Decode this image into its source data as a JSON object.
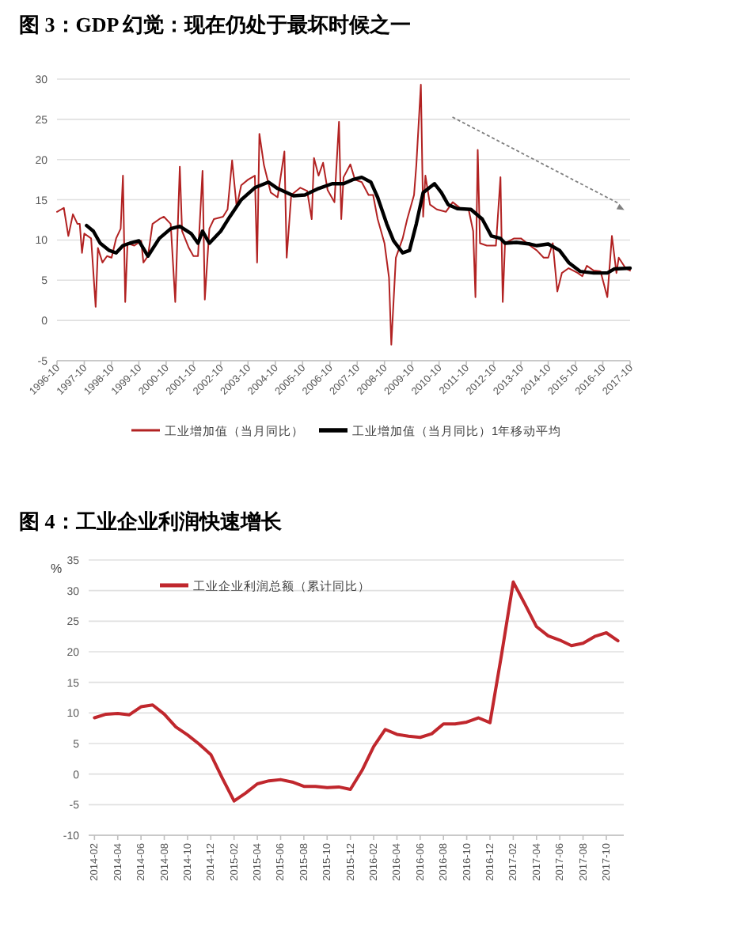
{
  "chart_data": [
    {
      "type": "line",
      "title": "图 3：GDP 幻觉：现在仍处于最坏时候之一",
      "xlim": [
        "1996-10",
        "2017-10"
      ],
      "xticks": [
        "1996-10",
        "1997-10",
        "1998-10",
        "1999-10",
        "2000-10",
        "2001-10",
        "2002-10",
        "2003-10",
        "2004-10",
        "2005-10",
        "2006-10",
        "2007-10",
        "2008-10",
        "2009-10",
        "2010-10",
        "2011-10",
        "2012-10",
        "2013-10",
        "2014-10",
        "2015-10",
        "2016-10",
        "2017-10"
      ],
      "ylim": [
        -5,
        30
      ],
      "yticks": [
        -5,
        0,
        5,
        10,
        15,
        20,
        25,
        30
      ],
      "grid": "y",
      "legend": "bottom",
      "series": [
        {
          "name": "工业增加值（当月同比）",
          "color": "#b22222",
          "x": [
            "1996-10",
            "1997-01",
            "1997-03",
            "1997-05",
            "1997-07",
            "1997-08",
            "1997-09",
            "1997-10",
            "1998-01",
            "1998-03",
            "1998-04",
            "1998-06",
            "1998-08",
            "1998-10",
            "1998-12",
            "1999-02",
            "1999-03",
            "1999-04",
            "1999-05",
            "1999-08",
            "1999-11",
            "1999-12",
            "2000-02",
            "2000-04",
            "2000-07",
            "2000-09",
            "2000-12",
            "2001-02",
            "2001-04",
            "2001-05",
            "2001-08",
            "2001-10",
            "2001-12",
            "2002-02",
            "2002-03",
            "2002-05",
            "2002-07",
            "2002-11",
            "2003-01",
            "2003-03",
            "2003-05",
            "2003-07",
            "2003-10",
            "2004-01",
            "2004-02",
            "2004-03",
            "2004-05",
            "2004-08",
            "2004-11",
            "2005-02",
            "2005-03",
            "2005-05",
            "2005-09",
            "2005-12",
            "2006-02",
            "2006-03",
            "2006-05",
            "2006-07",
            "2006-09",
            "2006-12",
            "2007-02",
            "2007-03",
            "2007-04",
            "2007-07",
            "2007-09",
            "2007-12",
            "2008-03",
            "2008-05",
            "2008-07",
            "2008-10",
            "2008-12",
            "2009-01",
            "2009-03",
            "2009-06",
            "2009-08",
            "2009-11",
            "2009-12",
            "2010-02",
            "2010-03",
            "2010-04",
            "2010-06",
            "2010-09",
            "2011-01",
            "2011-04",
            "2011-08",
            "2011-11",
            "2012-01",
            "2012-02",
            "2012-03",
            "2012-04",
            "2012-07",
            "2012-11",
            "2013-01",
            "2013-02",
            "2013-03",
            "2013-07",
            "2013-10",
            "2014-02",
            "2014-05",
            "2014-08",
            "2014-10",
            "2014-12",
            "2015-02",
            "2015-04",
            "2015-07",
            "2015-11",
            "2016-01",
            "2016-03",
            "2016-06",
            "2016-09",
            "2016-12",
            "2017-02",
            "2017-04",
            "2017-05",
            "2017-08",
            "2017-10"
          ],
          "values": [
            13.5,
            14,
            10.5,
            13.2,
            12,
            12,
            8.4,
            10.8,
            10.2,
            1.7,
            9,
            7.2,
            8,
            7.8,
            10.2,
            11.4,
            18,
            2.3,
            9.6,
            9.3,
            9.9,
            7.2,
            8,
            12,
            12.6,
            12.9,
            12,
            2.3,
            19.1,
            11.1,
            9,
            8,
            8,
            18.6,
            2.6,
            11.4,
            12.6,
            12.9,
            13.8,
            19.9,
            14.1,
            16.8,
            17.5,
            18,
            7.2,
            23.2,
            19.3,
            15.9,
            15.3,
            21,
            7.8,
            15.6,
            16.5,
            16.1,
            12.6,
            20.2,
            18,
            19.6,
            16.2,
            14.7,
            24.7,
            12.6,
            17.8,
            19.4,
            17.5,
            17.2,
            15.6,
            15.6,
            12.6,
            9.6,
            5.3,
            -3,
            7.8,
            10.2,
            12.6,
            15.6,
            19.3,
            29.3,
            12.9,
            18,
            14.4,
            13.8,
            13.5,
            14.7,
            13.8,
            13.8,
            11.1,
            2.9,
            21.2,
            9.6,
            9.3,
            9.3,
            17.8,
            2.3,
            9.6,
            10.2,
            10.2,
            9.3,
            8.7,
            7.8,
            7.8,
            9.6,
            3.6,
            5.9,
            6.5,
            5.9,
            5.5,
            6.8,
            6.2,
            6.1,
            2.9,
            10.5,
            5.9,
            7.8,
            6.5,
            6.2
          ]
        },
        {
          "name": "工业增加值（当月同比）1年移动平均",
          "color": "#000000",
          "x": [
            "1997-11",
            "1998-02",
            "1998-05",
            "1998-09",
            "1998-12",
            "1999-03",
            "1999-06",
            "1999-10",
            "2000-02",
            "2000-07",
            "2000-12",
            "2001-04",
            "2001-09",
            "2001-12",
            "2002-02",
            "2002-05",
            "2002-10",
            "2003-02",
            "2003-07",
            "2004-01",
            "2004-07",
            "2004-11",
            "2005-03",
            "2005-06",
            "2005-11",
            "2006-05",
            "2006-11",
            "2007-04",
            "2007-08",
            "2007-12",
            "2008-04",
            "2008-07",
            "2008-11",
            "2009-02",
            "2009-06",
            "2009-09",
            "2009-12",
            "2010-03",
            "2010-08",
            "2010-11",
            "2011-02",
            "2011-06",
            "2011-12",
            "2012-05",
            "2012-09",
            "2013-01",
            "2013-03",
            "2013-08",
            "2014-02",
            "2014-05",
            "2014-10",
            "2015-03",
            "2015-07",
            "2015-12",
            "2016-06",
            "2016-12",
            "2017-03",
            "2017-10"
          ],
          "values": [
            11.8,
            11.1,
            9.6,
            8.7,
            8.4,
            9.3,
            9.6,
            9.9,
            8,
            10.2,
            11.4,
            11.7,
            10.8,
            9.6,
            11.1,
            9.6,
            11.1,
            12.9,
            15,
            16.5,
            17.2,
            16.4,
            15.9,
            15.5,
            15.6,
            16.4,
            17,
            17,
            17.5,
            17.8,
            17.2,
            15.3,
            12,
            9.9,
            8.4,
            8.7,
            12,
            15.9,
            17,
            15.9,
            14.4,
            13.9,
            13.8,
            12.6,
            10.5,
            10.2,
            9.6,
            9.7,
            9.5,
            9.3,
            9.5,
            8.7,
            7.2,
            6.1,
            5.9,
            5.9,
            6.4,
            6.5
          ]
        }
      ]
    },
    {
      "type": "line",
      "title": "图 4：工业企业利润快速增长",
      "ylabel": "%",
      "categories": [
        "2014-02",
        null,
        "2014-04",
        null,
        "2014-06",
        null,
        "2014-08",
        null,
        "2014-10",
        null,
        "2014-12",
        null,
        "2015-02",
        null,
        "2015-04",
        null,
        "2015-06",
        null,
        "2015-08",
        null,
        "2015-10",
        null,
        "2015-12",
        null,
        "2016-02",
        null,
        "2016-04",
        null,
        "2016-06",
        null,
        "2016-08",
        null,
        "2016-10",
        null,
        "2016-12",
        null,
        "2017-02",
        null,
        "2017-04",
        null,
        "2017-06",
        null,
        "2017-08",
        null,
        "2017-10",
        null
      ],
      "ylim": [
        -10,
        35
      ],
      "yticks": [
        -10,
        -5,
        0,
        5,
        10,
        15,
        20,
        25,
        30,
        35
      ],
      "grid": "y",
      "legend": "top left",
      "series": [
        {
          "name": "工业企业利润总额（累计同比）",
          "color": "#c0272d",
          "values": [
            9.2,
            9.8,
            9.9,
            9.7,
            11,
            11.3,
            9.8,
            7.7,
            6.4,
            4.9,
            3.2,
            -0.7,
            -4.4,
            -3.1,
            -1.6,
            -1.1,
            -0.9,
            -1.3,
            -2,
            -2,
            -2.2,
            -2.1,
            -2.5,
            0.6,
            4.5,
            7.3,
            6.5,
            6.2,
            6,
            6.6,
            8.2,
            8.2,
            8.5,
            9.2,
            8.4,
            19.6,
            31.4,
            27.8,
            24.1,
            22.6,
            21.9,
            21,
            21.4,
            22.5,
            23.1,
            21.8
          ]
        }
      ]
    }
  ]
}
